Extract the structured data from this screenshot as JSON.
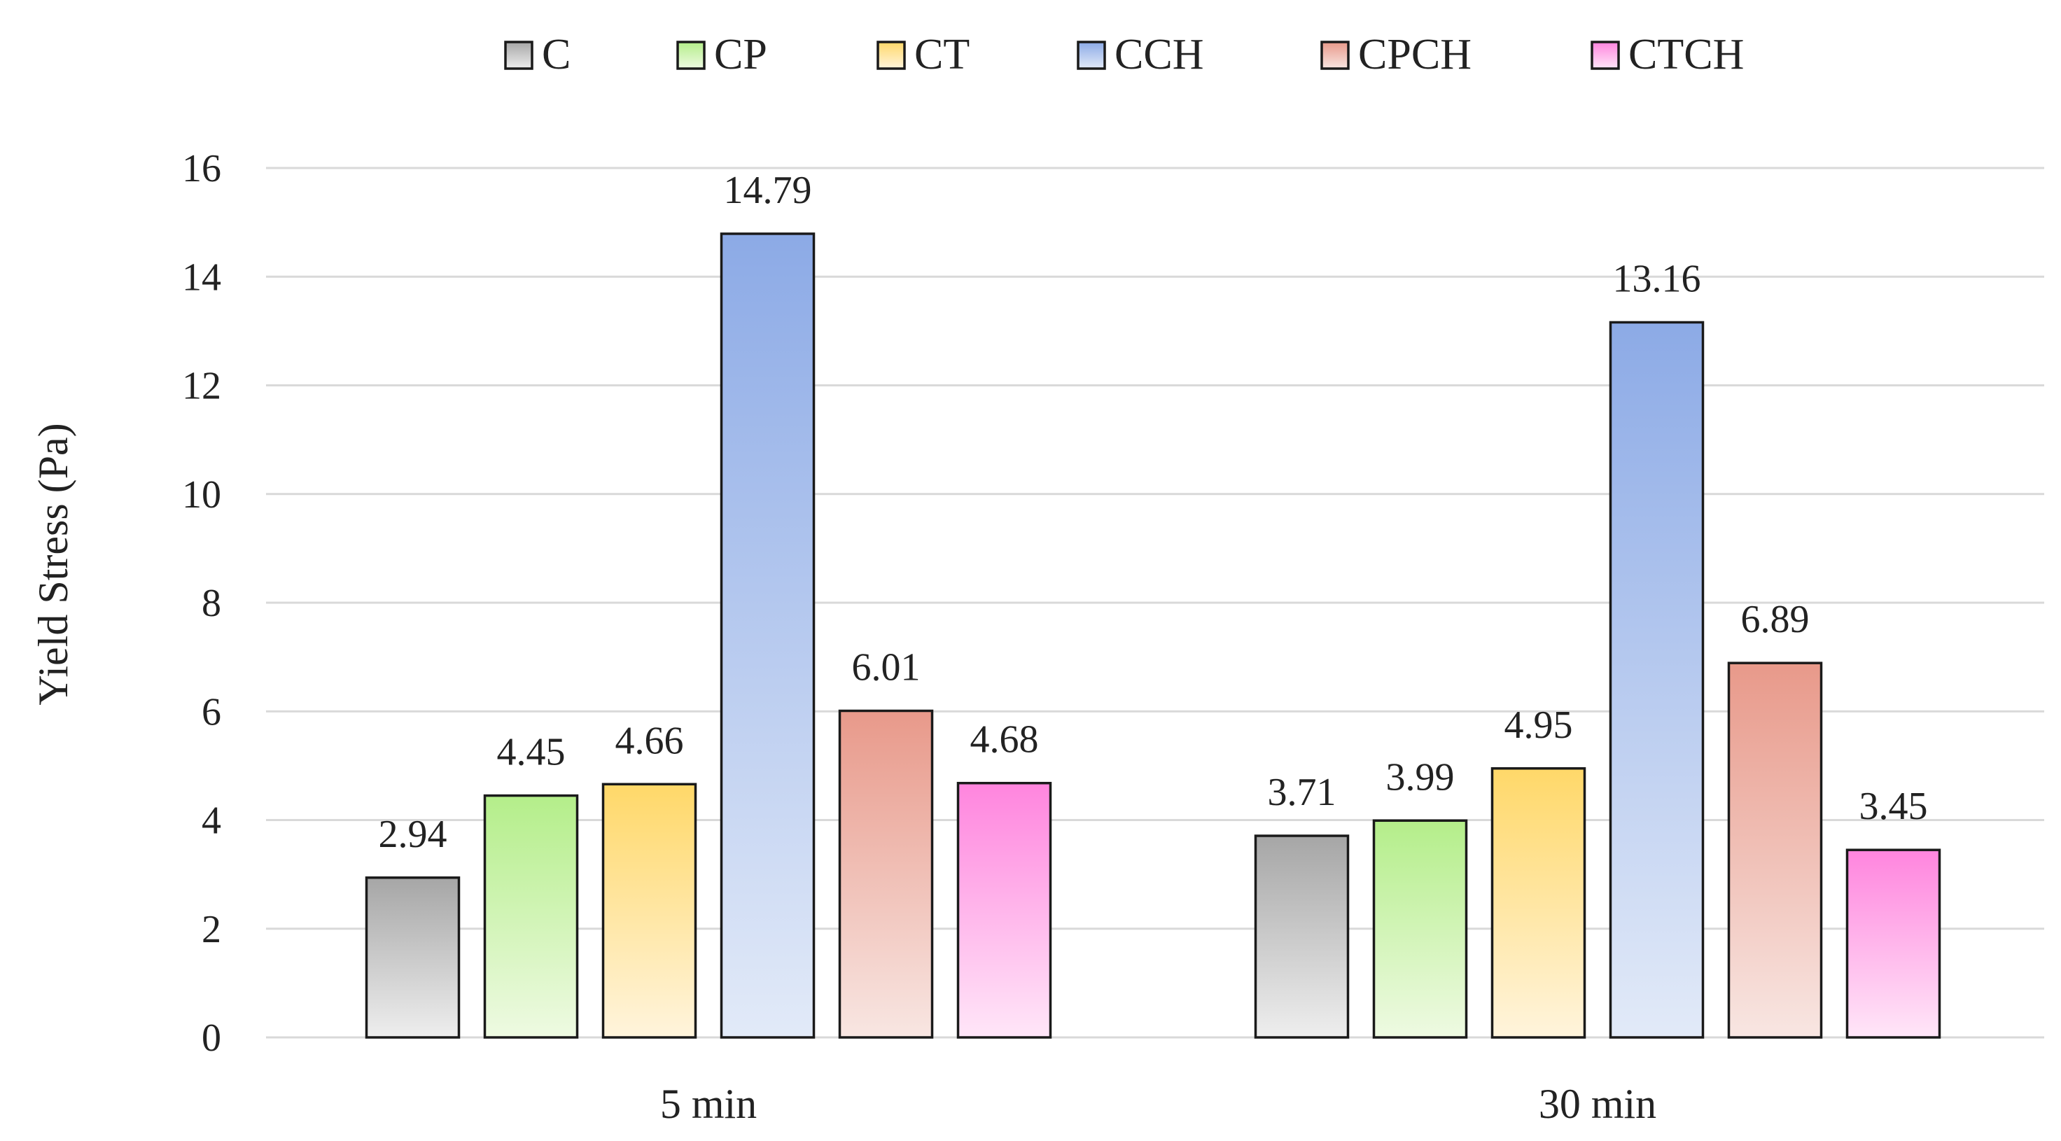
{
  "chart_data": {
    "type": "bar",
    "title": "",
    "xlabel": "",
    "ylabel": "Yield Stress (Pa)",
    "ylim": [
      0,
      16
    ],
    "yticks": [
      0,
      2,
      4,
      6,
      8,
      10,
      12,
      14,
      16
    ],
    "grid": true,
    "legend_position": "top",
    "categories": [
      "5 min",
      "30 min"
    ],
    "series": [
      {
        "name": "C",
        "values": [
          2.94,
          3.71
        ],
        "color_top": "#a6a6a6",
        "color_bottom": "#eeeeee",
        "key": "c"
      },
      {
        "name": "CP",
        "values": [
          4.45,
          3.99
        ],
        "color_top": "#b4ee8a",
        "color_bottom": "#eefae2",
        "key": "cp"
      },
      {
        "name": "CT",
        "values": [
          4.66,
          4.95
        ],
        "color_top": "#ffd869",
        "color_bottom": "#fff4dc",
        "key": "ct"
      },
      {
        "name": "CCH",
        "values": [
          14.79,
          13.16
        ],
        "color_top": "#8caae6",
        "color_bottom": "#e2eaf8",
        "key": "cch"
      },
      {
        "name": "CPCH",
        "values": [
          6.01,
          6.89
        ],
        "color_top": "#e8998a",
        "color_bottom": "#f8e6e2",
        "key": "cpch"
      },
      {
        "name": "CTCH",
        "values": [
          4.68,
          3.45
        ],
        "color_top": "#ff85de",
        "color_bottom": "#ffe6f8",
        "key": "ctch"
      }
    ],
    "data_labels": [
      [
        "2.94",
        "3.71"
      ],
      [
        "4.45",
        "3.99"
      ],
      [
        "4.66",
        "4.95"
      ],
      [
        "14.79",
        "13.16"
      ],
      [
        "6.01",
        "6.89"
      ],
      [
        "4.68",
        "3.45"
      ]
    ]
  }
}
